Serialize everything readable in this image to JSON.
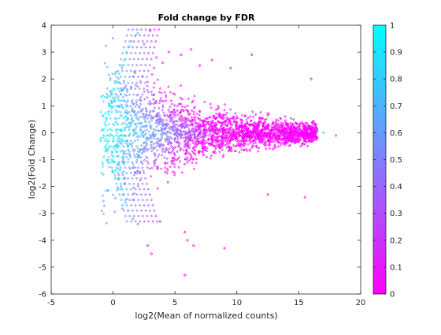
{
  "chart_data": {
    "type": "scatter",
    "title": "Fold change by FDR",
    "xlabel": "log2(Mean of normalized counts)",
    "ylabel": "log2(Fold Change)",
    "xlim": [
      -5,
      20
    ],
    "ylim": [
      -6,
      4
    ],
    "xticks": [
      -5,
      0,
      5,
      10,
      15,
      20
    ],
    "yticks": [
      -6,
      -5,
      -4,
      -3,
      -2,
      -1,
      0,
      1,
      2,
      3,
      4
    ],
    "grid": false,
    "marker": "diamond",
    "colorbar": {
      "label": "",
      "range": [
        0,
        1
      ],
      "ticks": [
        0,
        0.1,
        0.2,
        0.3,
        0.4,
        0.5,
        0.6,
        0.7,
        0.8,
        0.9,
        1
      ],
      "colormap": "cool (magenta at 0, cyan at 1)",
      "low_color": "#ff00ff",
      "high_color": "#00ffff"
    },
    "points": [
      {
        "x": -1.0,
        "y": -0.3,
        "c": 1.0
      },
      {
        "x": -0.9,
        "y": 0.1,
        "c": 1.0
      },
      {
        "x": -0.5,
        "y": 0.5,
        "c": 1.0
      },
      {
        "x": -0.4,
        "y": -0.6,
        "c": 1.0
      },
      {
        "x": -0.3,
        "y": 0.8,
        "c": 1.0
      },
      {
        "x": -0.2,
        "y": 1.0,
        "c": 1.0
      },
      {
        "x": -0.1,
        "y": -1.0,
        "c": 1.0
      },
      {
        "x": 0.0,
        "y": 1.3,
        "c": 1.0
      },
      {
        "x": 0.0,
        "y": -1.1,
        "c": 0.95
      },
      {
        "x": 0.1,
        "y": 1.6,
        "c": 1.0
      },
      {
        "x": 0.2,
        "y": -1.4,
        "c": 0.95
      },
      {
        "x": 0.3,
        "y": 1.9,
        "c": 1.0
      },
      {
        "x": 0.4,
        "y": -1.7,
        "c": 0.9
      },
      {
        "x": 0.5,
        "y": 2.2,
        "c": 1.0
      },
      {
        "x": 0.6,
        "y": -2.1,
        "c": 0.9
      },
      {
        "x": 0.7,
        "y": 2.5,
        "c": 0.95
      },
      {
        "x": 0.8,
        "y": -2.3,
        "c": 0.85
      },
      {
        "x": 0.9,
        "y": 2.7,
        "c": 0.95
      },
      {
        "x": 1.0,
        "y": -2.6,
        "c": 0.8
      },
      {
        "x": 1.1,
        "y": 3.0,
        "c": 0.9
      },
      {
        "x": 1.2,
        "y": -2.9,
        "c": 0.75
      },
      {
        "x": 1.3,
        "y": 3.2,
        "c": 0.85
      },
      {
        "x": 1.5,
        "y": 3.4,
        "c": 0.8
      },
      {
        "x": 1.6,
        "y": -3.2,
        "c": 0.6
      },
      {
        "x": 1.8,
        "y": 3.6,
        "c": 0.7
      },
      {
        "x": 2.0,
        "y": 3.7,
        "c": 0.6
      },
      {
        "x": 2.0,
        "y": -3.4,
        "c": 0.5
      },
      {
        "x": 2.5,
        "y": 3.3,
        "c": 0.45
      },
      {
        "x": 2.8,
        "y": -4.2,
        "c": 0.1
      },
      {
        "x": 3.0,
        "y": 3.8,
        "c": 0.1
      },
      {
        "x": 3.1,
        "y": -4.5,
        "c": 0.05
      },
      {
        "x": 3.3,
        "y": 2.4,
        "c": 0.25
      },
      {
        "x": 3.5,
        "y": 2.8,
        "c": 0.2
      },
      {
        "x": 3.8,
        "y": -3.3,
        "c": 0.15
      },
      {
        "x": 4.0,
        "y": 2.6,
        "c": 0.1
      },
      {
        "x": 4.5,
        "y": 3.0,
        "c": 0.05
      },
      {
        "x": 5.5,
        "y": 2.9,
        "c": 0.05
      },
      {
        "x": 5.8,
        "y": -3.7,
        "c": 0.05
      },
      {
        "x": 6.0,
        "y": -4.0,
        "c": 0.05
      },
      {
        "x": 6.3,
        "y": 3.1,
        "c": 0.05
      },
      {
        "x": 6.5,
        "y": -4.2,
        "c": 0.05
      },
      {
        "x": 5.8,
        "y": -5.3,
        "c": 0.0
      },
      {
        "x": 7.0,
        "y": 2.5,
        "c": 0.05
      },
      {
        "x": 8.0,
        "y": 2.7,
        "c": 0.05
      },
      {
        "x": 9.0,
        "y": -4.3,
        "c": 0.05
      },
      {
        "x": 9.5,
        "y": 2.4,
        "c": 0.05
      },
      {
        "x": 11.2,
        "y": 2.9,
        "c": 0.05
      },
      {
        "x": 12.5,
        "y": -2.3,
        "c": 0.05
      },
      {
        "x": 16.0,
        "y": 2.0,
        "c": 0.05
      },
      {
        "x": 15.5,
        "y": -2.4,
        "c": 0.05
      },
      {
        "x": 17.0,
        "y": 0.0,
        "c": 0.8
      },
      {
        "x": 18.0,
        "y": -0.1,
        "c": 0.3
      },
      {
        "x": 16.5,
        "y": 0.05,
        "c": 0.9
      },
      {
        "x": 15.0,
        "y": 0.1,
        "c": 0.7
      },
      {
        "x": 14.0,
        "y": -0.1,
        "c": 0.4
      },
      {
        "x": 13.0,
        "y": 0.1,
        "c": 0.1
      },
      {
        "x": 12.0,
        "y": -0.2,
        "c": 0.05
      },
      {
        "x": 11.0,
        "y": 0.3,
        "c": 0.05
      },
      {
        "x": 10.0,
        "y": -0.3,
        "c": 0.05
      },
      {
        "x": 9.0,
        "y": 0.4,
        "c": 0.05
      },
      {
        "x": 8.0,
        "y": -0.4,
        "c": 0.1
      },
      {
        "x": 7.0,
        "y": 0.5,
        "c": 0.2
      },
      {
        "x": 6.0,
        "y": -0.5,
        "c": 0.35
      },
      {
        "x": 5.0,
        "y": 0.6,
        "c": 0.5
      },
      {
        "x": 4.0,
        "y": -0.7,
        "c": 0.6
      },
      {
        "x": 3.0,
        "y": 0.8,
        "c": 0.75
      },
      {
        "x": 2.0,
        "y": -0.9,
        "c": 0.85
      },
      {
        "x": 1.0,
        "y": 0.6,
        "c": 0.95
      }
    ]
  }
}
